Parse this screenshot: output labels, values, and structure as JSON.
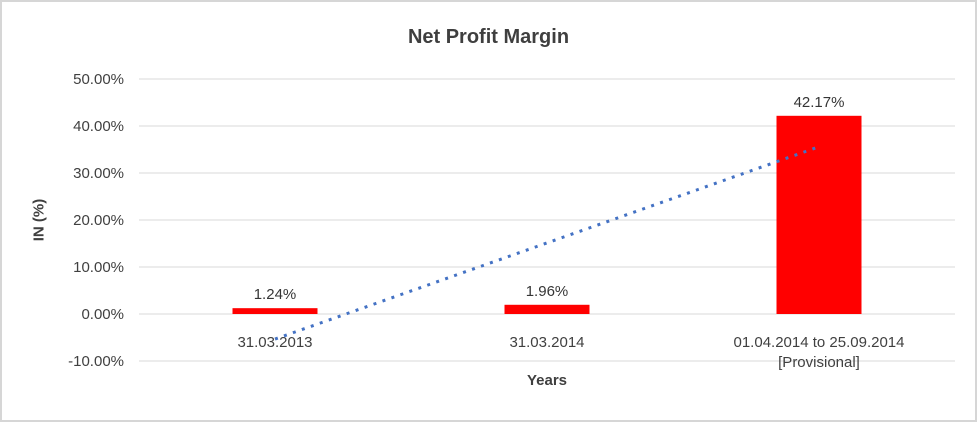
{
  "chart_data": {
    "type": "bar",
    "title": "Net Profit Margin",
    "xlabel": "Years",
    "ylabel": "IN (%)",
    "categories": [
      "31.03.2013",
      "31.03.2014",
      "01.04.2014 to 25.09.2014\n[Provisional]"
    ],
    "values": [
      1.24,
      1.96,
      42.17
    ],
    "data_labels": [
      "1.24%",
      "1.96%",
      "42.17%"
    ],
    "ylim": [
      -10,
      50
    ],
    "yticks": [
      {
        "value": 50,
        "label": "50.00%"
      },
      {
        "value": 40,
        "label": "40.00%"
      },
      {
        "value": 30,
        "label": "30.00%"
      },
      {
        "value": 20,
        "label": "20.00%"
      },
      {
        "value": 10,
        "label": "10.00%"
      },
      {
        "value": 0,
        "label": "0.00%"
      },
      {
        "value": -10,
        "label": "-10.00%"
      }
    ],
    "grid": true,
    "legend": "none",
    "bar_color": "#FF0000",
    "gridline_color": "#D9D9D9",
    "label_color": "#404040",
    "trendline": {
      "type": "linear",
      "style": "dotted",
      "color": "#4472C4",
      "start_value": -5.34,
      "end_value": 35.59
    }
  }
}
